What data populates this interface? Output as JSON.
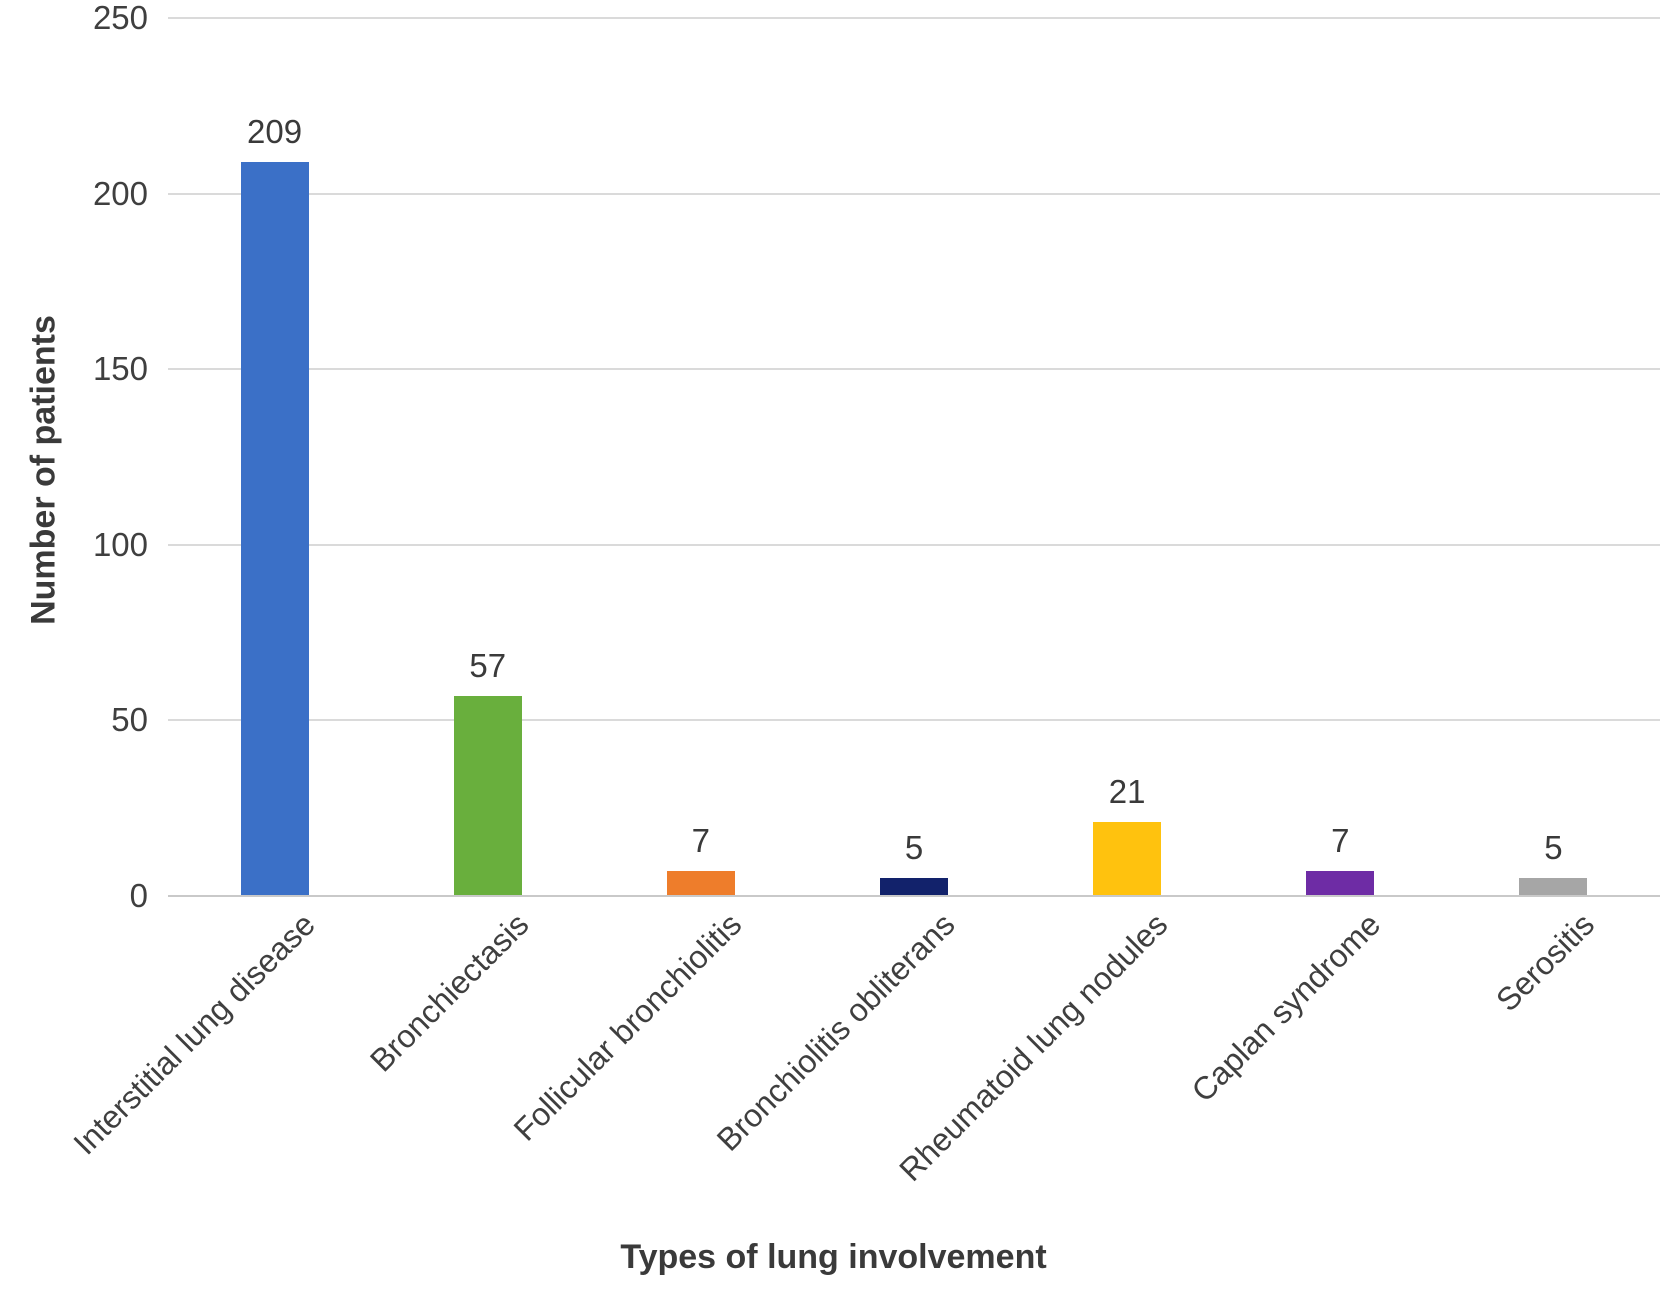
{
  "chart_data": {
    "type": "bar",
    "title": "",
    "xlabel": "Types of lung involvement",
    "ylabel": "Number of patients",
    "categories": [
      "Interstitial lung disease",
      "Bronchiectasis",
      "Follicular bronchiolitis",
      "Bronchiolitis obliterans",
      "Rheumatoid lung nodules",
      "Caplan syndrome",
      "Serositis"
    ],
    "values": [
      209,
      57,
      7,
      5,
      21,
      7,
      5
    ],
    "value_labels": [
      "209",
      "57",
      "7",
      "5",
      "21",
      "7",
      "5"
    ],
    "bar_colors": [
      "#3b70c7",
      "#69af3d",
      "#ee7d2b",
      "#12226b",
      "#ffc20e",
      "#6e2ca5",
      "#a6a6a6"
    ],
    "ylim": [
      0,
      250
    ],
    "yticks": [
      0,
      50,
      100,
      150,
      200,
      250
    ],
    "ytick_labels": [
      "0",
      "50",
      "100",
      "150",
      "200",
      "250"
    ],
    "grid": true,
    "gridline_color": "#dadada",
    "axis_line_color": "#c9c9c9",
    "text_color": "#3f3f3f",
    "legend": "none",
    "background_color": "#ffffff"
  }
}
